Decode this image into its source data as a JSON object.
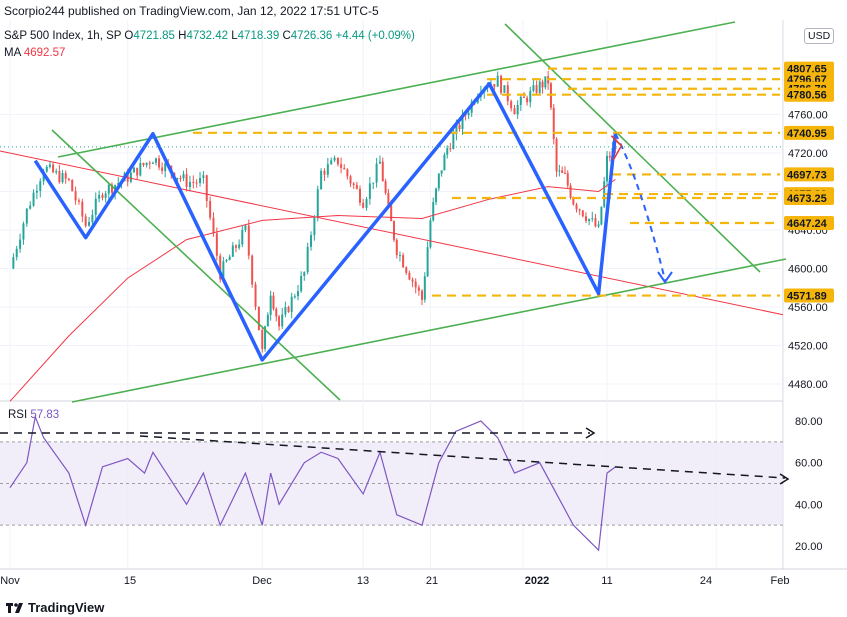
{
  "header": {
    "publisher": "Scorpio244 published on TradingView.com, Jan 12, 2022 17:51 UTC-5"
  },
  "legend": {
    "symbol": "S&P 500 Index, 1h, SP",
    "open_label": "O",
    "open": "4721.85",
    "high_label": "H",
    "high": "4732.42",
    "low_label": "L",
    "low": "4718.39",
    "close_label": "C",
    "close": "4726.36",
    "change": "+4.44 (+0.09%)",
    "ma_label": "MA",
    "ma_value": "4692.57"
  },
  "currency": "USD",
  "rsi": {
    "label": "RSI",
    "value": "57.83"
  },
  "footer": {
    "brand": "TradingView"
  },
  "colors": {
    "candle_up": "#26a69a",
    "candle_down": "#ef5350",
    "zigzag": "#2962ff",
    "channel": "#4caf50",
    "ma": "#f23645",
    "hlevel": "#f5b50a",
    "rsi_line": "#7e57c2",
    "rsi_band": "#ede7f6",
    "dashed_black": "#131722"
  },
  "chart_data": [
    {
      "type": "candlestick",
      "title": "S&P 500 Index, 1h, SP",
      "x_tick_labels": [
        "Nov",
        "15",
        "Dec",
        "13",
        "21",
        "2022",
        "11",
        "24",
        "Feb"
      ],
      "y_ticks": [
        4480.0,
        4520.0,
        4560.0,
        4600.0,
        4640.0,
        4680.0,
        4720.0,
        4760.0
      ],
      "ylim": [
        4460,
        4830
      ],
      "price_levels": [
        4807.65,
        4796.67,
        4786.78,
        4780.56,
        4740.95,
        4697.73,
        4677.32,
        4673.25,
        4647.24,
        4571.89
      ],
      "last_price": 4726.36,
      "zigzag_points": [
        {
          "date": "Nov 4",
          "price": 4712
        },
        {
          "date": "Nov 10",
          "price": 4632
        },
        {
          "date": "Nov 18",
          "price": 4740
        },
        {
          "date": "Dec 1",
          "price": 4505
        },
        {
          "date": "Dec 28",
          "price": 4792
        },
        {
          "date": "Jan 10",
          "price": 4574
        },
        {
          "date": "Jan 12",
          "price": 4740
        }
      ],
      "close_path": [
        {
          "date": "Nov 1",
          "price": 4600
        },
        {
          "date": "Nov 3",
          "price": 4660
        },
        {
          "date": "Nov 5",
          "price": 4705
        },
        {
          "date": "Nov 8",
          "price": 4690
        },
        {
          "date": "Nov 10",
          "price": 4645
        },
        {
          "date": "Nov 12",
          "price": 4680
        },
        {
          "date": "Nov 15",
          "price": 4695
        },
        {
          "date": "Nov 18",
          "price": 4715
        },
        {
          "date": "Nov 22",
          "price": 4690
        },
        {
          "date": "Nov 24",
          "price": 4690
        },
        {
          "date": "Nov 26",
          "price": 4595
        },
        {
          "date": "Nov 29",
          "price": 4640
        },
        {
          "date": "Dec 1",
          "price": 4513
        },
        {
          "date": "Dec 2",
          "price": 4577
        },
        {
          "date": "Dec 3",
          "price": 4540
        },
        {
          "date": "Dec 6",
          "price": 4595
        },
        {
          "date": "Dec 8",
          "price": 4700
        },
        {
          "date": "Dec 10",
          "price": 4712
        },
        {
          "date": "Dec 13",
          "price": 4670
        },
        {
          "date": "Dec 15",
          "price": 4710
        },
        {
          "date": "Dec 16",
          "price": 4660
        },
        {
          "date": "Dec 17",
          "price": 4620
        },
        {
          "date": "Dec 20",
          "price": 4568
        },
        {
          "date": "Dec 21",
          "price": 4650
        },
        {
          "date": "Dec 22",
          "price": 4695
        },
        {
          "date": "Dec 23",
          "price": 4725
        },
        {
          "date": "Dec 27",
          "price": 4790
        },
        {
          "date": "Dec 29",
          "price": 4795
        },
        {
          "date": "Dec 31",
          "price": 4766
        },
        {
          "date": "Jan 3",
          "price": 4790
        },
        {
          "date": "Jan 4",
          "price": 4795
        },
        {
          "date": "Jan 5",
          "price": 4700
        },
        {
          "date": "Jan 6",
          "price": 4695
        },
        {
          "date": "Jan 7",
          "price": 4670
        },
        {
          "date": "Jan 10",
          "price": 4640
        },
        {
          "date": "Jan 11",
          "price": 4713
        },
        {
          "date": "Jan 12",
          "price": 4726
        }
      ],
      "ma_path": [
        {
          "date": "Nov 1",
          "price": 4462
        },
        {
          "date": "Nov 8",
          "price": 4530
        },
        {
          "date": "Nov 15",
          "price": 4590
        },
        {
          "date": "Nov 22",
          "price": 4630
        },
        {
          "date": "Dec 1",
          "price": 4650
        },
        {
          "date": "Dec 10",
          "price": 4655
        },
        {
          "date": "Dec 20",
          "price": 4652
        },
        {
          "date": "Dec 28",
          "price": 4672
        },
        {
          "date": "Jan 4",
          "price": 4685
        },
        {
          "date": "Jan 10",
          "price": 4680
        },
        {
          "date": "Jan 12",
          "price": 4692.57
        }
      ],
      "ma": {
        "label": "MA",
        "last": 4692.57
      }
    },
    {
      "type": "line",
      "title": "RSI",
      "y_ticks": [
        20.0,
        40.0,
        60.0,
        80.0
      ],
      "ylim": [
        13,
        88
      ],
      "bands": [
        30,
        50,
        70
      ],
      "last": 57.83,
      "series": [
        {
          "values": [
            {
              "date": "Nov 1",
              "v": 48
            },
            {
              "date": "Nov 3",
              "v": 60
            },
            {
              "date": "Nov 4",
              "v": 82
            },
            {
              "date": "Nov 5",
              "v": 72
            },
            {
              "date": "Nov 8",
              "v": 55
            },
            {
              "date": "Nov 10",
              "v": 30
            },
            {
              "date": "Nov 12",
              "v": 58
            },
            {
              "date": "Nov 15",
              "v": 62
            },
            {
              "date": "Nov 17",
              "v": 55
            },
            {
              "date": "Nov 18",
              "v": 65
            },
            {
              "date": "Nov 22",
              "v": 40
            },
            {
              "date": "Nov 24",
              "v": 55
            },
            {
              "date": "Nov 26",
              "v": 30
            },
            {
              "date": "Nov 29",
              "v": 55
            },
            {
              "date": "Dec 1",
              "v": 30
            },
            {
              "date": "Dec 2",
              "v": 55
            },
            {
              "date": "Dec 3",
              "v": 40
            },
            {
              "date": "Dec 6",
              "v": 60
            },
            {
              "date": "Dec 8",
              "v": 65
            },
            {
              "date": "Dec 10",
              "v": 62
            },
            {
              "date": "Dec 13",
              "v": 45
            },
            {
              "date": "Dec 15",
              "v": 65
            },
            {
              "date": "Dec 17",
              "v": 35
            },
            {
              "date": "Dec 20",
              "v": 30
            },
            {
              "date": "Dec 22",
              "v": 60
            },
            {
              "date": "Dec 24",
              "v": 75
            },
            {
              "date": "Dec 27",
              "v": 80
            },
            {
              "date": "Dec 29",
              "v": 72
            },
            {
              "date": "Dec 31",
              "v": 55
            },
            {
              "date": "Jan 3",
              "v": 60
            },
            {
              "date": "Jan 5",
              "v": 45
            },
            {
              "date": "Jan 7",
              "v": 30
            },
            {
              "date": "Jan 10",
              "v": 18
            },
            {
              "date": "Jan 11",
              "v": 55
            },
            {
              "date": "Jan 12",
              "v": 58
            }
          ]
        }
      ]
    }
  ]
}
